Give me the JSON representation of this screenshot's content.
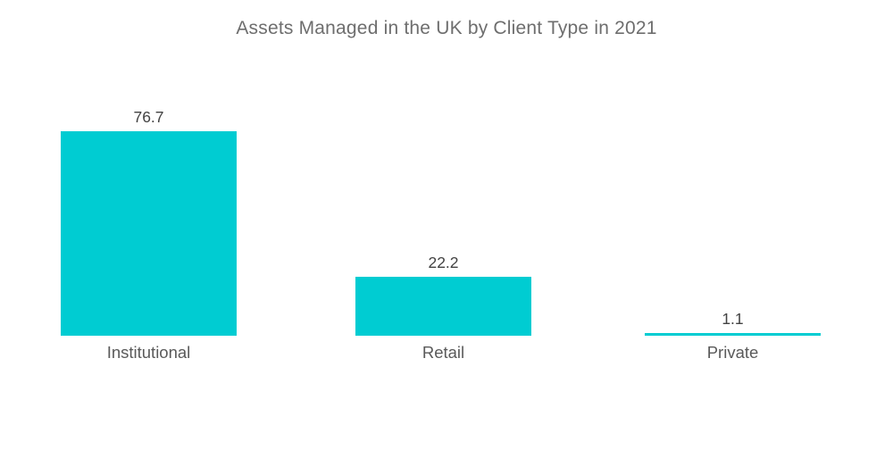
{
  "chart_data": {
    "type": "bar",
    "title": "Assets Managed in the UK by Client Type in 2021",
    "categories": [
      "Institutional",
      "Retail",
      "Private"
    ],
    "values": [
      76.7,
      22.2,
      1.1
    ],
    "value_labels": [
      "76.7",
      "22.2",
      "1.1"
    ],
    "xlabel": "",
    "ylabel": "",
    "ylim": [
      0,
      80
    ],
    "grid": false,
    "legend": false,
    "axes_visible": false,
    "bar_color": "#00CCD2",
    "title_color": "#6e6e6e",
    "value_label_color": "#424242",
    "category_label_color": "#5a5a5a",
    "background_color": "#ffffff"
  }
}
